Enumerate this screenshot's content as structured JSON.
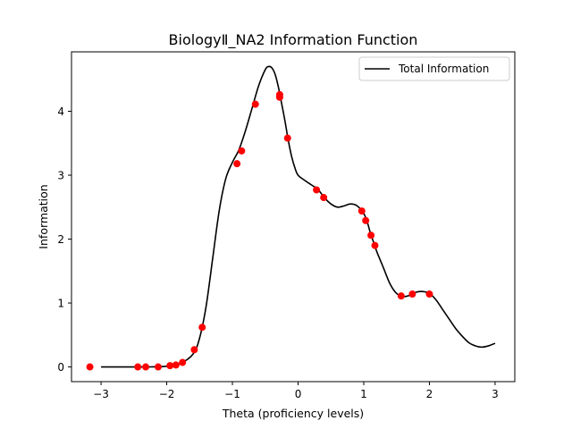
{
  "chart_data": {
    "type": "line",
    "title": "BiologyⅡ_NA2 Information Function",
    "xlabel": "Theta (proficiency levels)",
    "ylabel": "Information",
    "xlim": [
      -3.45,
      3.3
    ],
    "ylim": [
      -0.23,
      4.93
    ],
    "xticks": [
      -3,
      -2,
      -1,
      0,
      1,
      2,
      3
    ],
    "yticks": [
      0,
      1,
      2,
      3,
      4
    ],
    "grid": false,
    "legend": {
      "placement": "top-right",
      "entries": [
        "Total Information"
      ]
    },
    "series": [
      {
        "name": "Total Information",
        "kind": "line",
        "color": "#000000",
        "points": [
          [
            -3.0,
            0.0
          ],
          [
            -2.6,
            0.0
          ],
          [
            -2.3,
            0.0
          ],
          [
            -2.0,
            0.01
          ],
          [
            -1.8,
            0.05
          ],
          [
            -1.6,
            0.2
          ],
          [
            -1.5,
            0.45
          ],
          [
            -1.4,
            0.95
          ],
          [
            -1.3,
            1.7
          ],
          [
            -1.2,
            2.45
          ],
          [
            -1.1,
            2.95
          ],
          [
            -1.0,
            3.2
          ],
          [
            -0.9,
            3.4
          ],
          [
            -0.8,
            3.7
          ],
          [
            -0.7,
            4.05
          ],
          [
            -0.6,
            4.4
          ],
          [
            -0.5,
            4.65
          ],
          [
            -0.45,
            4.7
          ],
          [
            -0.4,
            4.68
          ],
          [
            -0.35,
            4.58
          ],
          [
            -0.3,
            4.38
          ],
          [
            -0.25,
            4.12
          ],
          [
            -0.2,
            3.85
          ],
          [
            -0.15,
            3.55
          ],
          [
            -0.1,
            3.3
          ],
          [
            -0.05,
            3.12
          ],
          [
            0.0,
            3.0
          ],
          [
            0.1,
            2.92
          ],
          [
            0.2,
            2.85
          ],
          [
            0.3,
            2.78
          ],
          [
            0.4,
            2.65
          ],
          [
            0.5,
            2.55
          ],
          [
            0.6,
            2.5
          ],
          [
            0.7,
            2.52
          ],
          [
            0.8,
            2.55
          ],
          [
            0.9,
            2.52
          ],
          [
            1.0,
            2.4
          ],
          [
            1.05,
            2.28
          ],
          [
            1.1,
            2.1
          ],
          [
            1.15,
            1.95
          ],
          [
            1.2,
            1.8
          ],
          [
            1.3,
            1.55
          ],
          [
            1.4,
            1.3
          ],
          [
            1.5,
            1.15
          ],
          [
            1.6,
            1.1
          ],
          [
            1.7,
            1.12
          ],
          [
            1.8,
            1.17
          ],
          [
            1.9,
            1.18
          ],
          [
            2.0,
            1.15
          ],
          [
            2.1,
            1.05
          ],
          [
            2.2,
            0.9
          ],
          [
            2.3,
            0.75
          ],
          [
            2.4,
            0.6
          ],
          [
            2.5,
            0.48
          ],
          [
            2.6,
            0.38
          ],
          [
            2.7,
            0.33
          ],
          [
            2.8,
            0.31
          ],
          [
            2.9,
            0.33
          ],
          [
            3.0,
            0.37
          ]
        ]
      },
      {
        "name": "",
        "kind": "scatter",
        "color": "#ff0000",
        "points": [
          [
            -3.17,
            0.0
          ],
          [
            -2.44,
            0.0
          ],
          [
            -2.32,
            0.0
          ],
          [
            -2.13,
            0.0
          ],
          [
            -1.95,
            0.02
          ],
          [
            -1.86,
            0.03
          ],
          [
            -1.76,
            0.07
          ],
          [
            -1.58,
            0.27
          ],
          [
            -1.46,
            0.62
          ],
          [
            -0.93,
            3.18
          ],
          [
            -0.86,
            3.38
          ],
          [
            -0.65,
            4.11
          ],
          [
            -0.28,
            4.22
          ],
          [
            -0.28,
            4.26
          ],
          [
            -0.16,
            3.58
          ],
          [
            0.28,
            2.77
          ],
          [
            0.39,
            2.65
          ],
          [
            0.97,
            2.44
          ],
          [
            1.03,
            2.29
          ],
          [
            1.11,
            2.06
          ],
          [
            1.17,
            1.9
          ],
          [
            1.57,
            1.11
          ],
          [
            1.74,
            1.14
          ],
          [
            2.0,
            1.14
          ]
        ]
      }
    ]
  }
}
